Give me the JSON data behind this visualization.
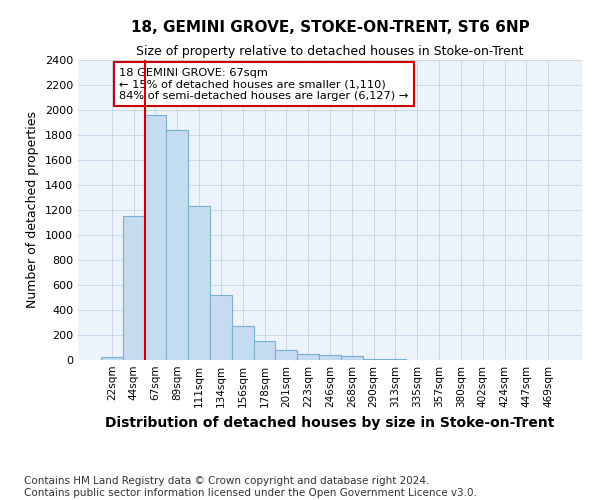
{
  "title": "18, GEMINI GROVE, STOKE-ON-TRENT, ST6 6NP",
  "subtitle": "Size of property relative to detached houses in Stoke-on-Trent",
  "xlabel": "Distribution of detached houses by size in Stoke-on-Trent",
  "ylabel": "Number of detached properties",
  "categories": [
    "22sqm",
    "44sqm",
    "67sqm",
    "89sqm",
    "111sqm",
    "134sqm",
    "156sqm",
    "178sqm",
    "201sqm",
    "223sqm",
    "246sqm",
    "268sqm",
    "290sqm",
    "313sqm",
    "335sqm",
    "357sqm",
    "380sqm",
    "402sqm",
    "424sqm",
    "447sqm",
    "469sqm"
  ],
  "values": [
    25,
    1150,
    1960,
    1840,
    1230,
    520,
    270,
    150,
    80,
    50,
    40,
    35,
    10,
    5,
    2,
    2,
    1,
    1,
    0,
    0,
    0
  ],
  "bar_color": "#c5dcf0",
  "bar_edge_color": "#7aafd4",
  "red_line_index": 2,
  "annotation_text": "18 GEMINI GROVE: 67sqm\n← 15% of detached houses are smaller (1,110)\n84% of semi-detached houses are larger (6,127) →",
  "annotation_box_color": "#ffffff",
  "annotation_box_edge_color": "#cc0000",
  "ylim": [
    0,
    2400
  ],
  "yticks": [
    0,
    200,
    400,
    600,
    800,
    1000,
    1200,
    1400,
    1600,
    1800,
    2000,
    2200,
    2400
  ],
  "grid_color": "#c8d8ec",
  "background_color": "#edf3fb",
  "title_fontsize": 11,
  "subtitle_fontsize": 9,
  "xlabel_fontsize": 10,
  "ylabel_fontsize": 9,
  "footer_text": "Contains HM Land Registry data © Crown copyright and database right 2024.\nContains public sector information licensed under the Open Government Licence v3.0.",
  "footer_fontsize": 7.5
}
